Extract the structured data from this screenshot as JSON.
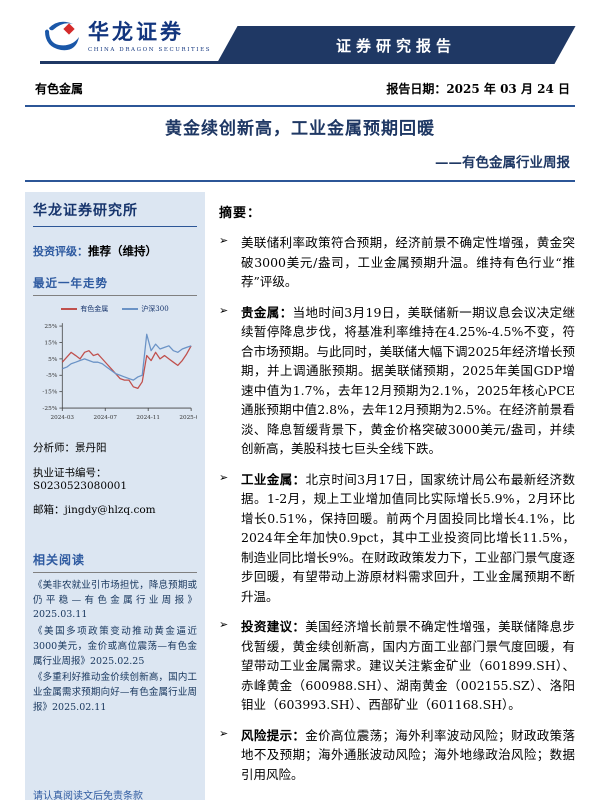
{
  "header": {
    "brand_cn": "华龙证券",
    "brand_en": "CHINA DRAGON SECURITIES",
    "banner": "证券研究报告",
    "category": "有色金属",
    "report_date": "报告日期：2025 年 03 月 24 日"
  },
  "title": "黄金续创新高，工业金属预期回暖",
  "subtitle": "——有色金属行业周报",
  "sidebar": {
    "institute": "华龙证券研究所",
    "rating_label": "投资评级：",
    "rating_value": "推荐（维持）",
    "trend_heading": "最近一年走势",
    "analyst_line": "分析师：景丹阳",
    "license_line": "执业证书编号：S0230523080001",
    "email_line": "邮箱：jingdy@hlzq.com",
    "related_heading": "相关阅读",
    "related": [
      "《美非农就业引市场担忧，降息预期或仍平稳—有色金属行业周报》2025.03.11",
      "《美国多项政策变动推动黄金逼近3000美元，金价或高位震荡—有色金属行业周报》2025.02.25",
      "《多重利好推动金价续创新高，国内工业金属需求预期向好—有色金属行业周报》2025.02.11"
    ]
  },
  "summary": {
    "heading": "摘要：",
    "bullets": [
      {
        "label": "",
        "text": "美联储利率政策符合预期，经济前景不确定性增强，黄金突破3000美元/盎司，工业金属预期升温。维持有色行业“推荐”评级。"
      },
      {
        "label": "贵金属：",
        "text": "当地时间3月19日，美联储新一期议息会议决定继续暂停降息步伐，将基准利率维持在4.25%-4.5%不变，符合市场预期。与此同时，美联储大幅下调2025年经济增长预期，并上调通胀预期。据美联储预期，2025年美国GDP增速中值为1.7%，去年12月预期为2.1%，2025年核心PCE通胀预期中值2.8%，去年12月预期为2.5%。在经济前景看淡、降息暂缓背景下，黄金价格突破3000美元/盎司，并续创新高，美股科技七巨头全线下跌。"
      },
      {
        "label": "工业金属：",
        "text": "北京时间3月17日，国家统计局公布最新经济数据。1-2月，规上工业增加值同比实际增长5.9%，2月环比增长0.51%，保持回暖。前两个月固投同比增长4.1%，比2024年全年加快0.9pct，其中工业投资同比增长11.5%，制造业同比增长9%。在财政政策发力下，工业部门景气度逐步回暖，有望带动上游原材料需求回升，工业金属预期不断升温。"
      },
      {
        "label": "投资建议：",
        "text": "美国经济增长前景不确定性增强，美联储降息步伐暂缓，黄金续创新高，国内方面工业部门景气度回暖，有望带动工业金属需求。建议关注紫金矿业（601899.SH）、赤峰黄金（600988.SH）、湖南黄金（002155.SZ）、洛阳钼业（603993.SH）、西部矿业（601168.SH）。"
      },
      {
        "label": "风险提示：",
        "text": "金价高位震荡；海外利率波动风险；财政政策落地不及预期；海外通胀波动风险；海外地缘政治风险；数据引用风险。"
      }
    ]
  },
  "footer": {
    "disclaimer": "请认真阅读文后免责条款"
  },
  "colors": {
    "accent_navy": "#1f3864",
    "rule_blue": "#2c5697",
    "sidebar_bg": "#dce6f2",
    "label_blue": "#2e5aa0",
    "series_red": "#c0504d",
    "series_blue": "#6b93c6"
  },
  "chart_data": {
    "type": "line",
    "title": "最近一年走势",
    "x_ticks": [
      "2024-03",
      "2024-07",
      "2024-11",
      "2025-03"
    ],
    "y_ticks": [
      "25%",
      "15%",
      "5%",
      "-5%",
      "-15%",
      "-25%"
    ],
    "ylim": [
      -25,
      25
    ],
    "legend_position": "top",
    "series": [
      {
        "name": "有色金属",
        "color": "#c0504d",
        "values": [
          3,
          6,
          9,
          7,
          5,
          9,
          10,
          7,
          8,
          5,
          2,
          -1,
          -4,
          -7,
          -8,
          -8,
          -12,
          -13,
          -9,
          7,
          4,
          9,
          5,
          7,
          5,
          3,
          1,
          4,
          8,
          13
        ]
      },
      {
        "name": "沪深300",
        "color": "#6b93c6",
        "values": [
          -1,
          0,
          2,
          3,
          4,
          5,
          4,
          3,
          3,
          2,
          0,
          -2,
          -4,
          -5,
          -6,
          -7,
          -8,
          -6,
          -5,
          20,
          10,
          14,
          11,
          12,
          13,
          10,
          9,
          11,
          12,
          13
        ]
      }
    ]
  }
}
